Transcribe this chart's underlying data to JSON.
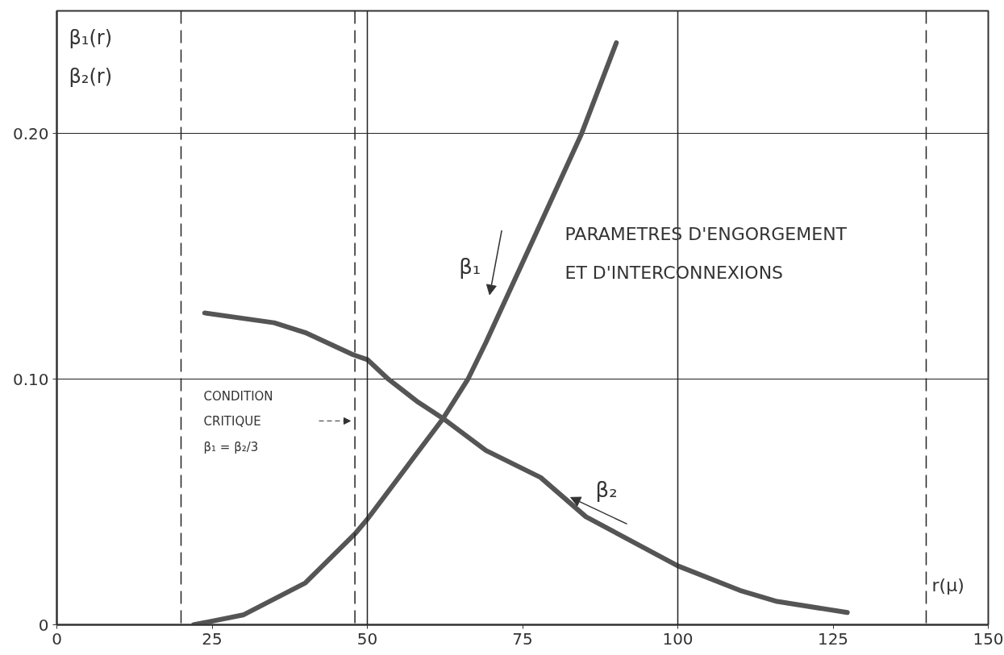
{
  "chart_data": {
    "type": "line",
    "title": "PARAMETRES D'ENGORGEMENT\nET D'INTERCONNEXIONS",
    "xlabel": "r(μ)",
    "ylabel": "β₁(r)\nβ₂(r)",
    "series": [
      {
        "name": "β₁",
        "color": "#555555",
        "x": [
          22,
          30,
          40,
          48,
          50,
          62.2,
          66.2,
          69.1,
          77.1,
          84.5,
          90.1
        ],
        "values": [
          0,
          0.004,
          0.017,
          0.037,
          0.043,
          0.084,
          0.1,
          0.115,
          0.159,
          0.2,
          0.237
        ]
      },
      {
        "name": "β₂",
        "color": "#555555",
        "x": [
          23.8,
          35,
          40,
          47.7,
          50,
          53.4,
          58,
          62.2,
          69.1,
          77.9,
          85.2,
          100,
          110,
          116,
          127.3
        ],
        "values": [
          0.127,
          0.123,
          0.119,
          0.11,
          0.108,
          0.1,
          0.091,
          0.084,
          0.071,
          0.06,
          0.044,
          0.024,
          0.014,
          0.0095,
          0.005
        ]
      }
    ],
    "xlim": [
      0,
      150
    ],
    "xticks": [
      0,
      25,
      50,
      75,
      100,
      125,
      150
    ],
    "ylim": [
      0,
      0.25
    ],
    "yticks": [
      0,
      {
        "value": 0.1,
        "label": "0.10"
      },
      {
        "value": 0.2,
        "label": "0.20"
      }
    ],
    "grid": "y",
    "line_style": "solid",
    "ref_lines": [
      {
        "axis": "x",
        "value": 50,
        "color": "#222222",
        "line_style": "solid"
      },
      {
        "axis": "x",
        "value": 100,
        "color": "#222222",
        "line_style": "solid"
      },
      {
        "axis": "x",
        "value": 20,
        "color": "#222222",
        "line_style": "dashed"
      },
      {
        "axis": "x",
        "value": 48,
        "color": "#222222",
        "line_style": "dashed"
      },
      {
        "axis": "x",
        "value": 140,
        "color": "#222222",
        "line_style": "dashed"
      }
    ],
    "annotations": [
      "CONDITION\nCRITIQUE\nβ₁ = β₂/3"
    ]
  }
}
